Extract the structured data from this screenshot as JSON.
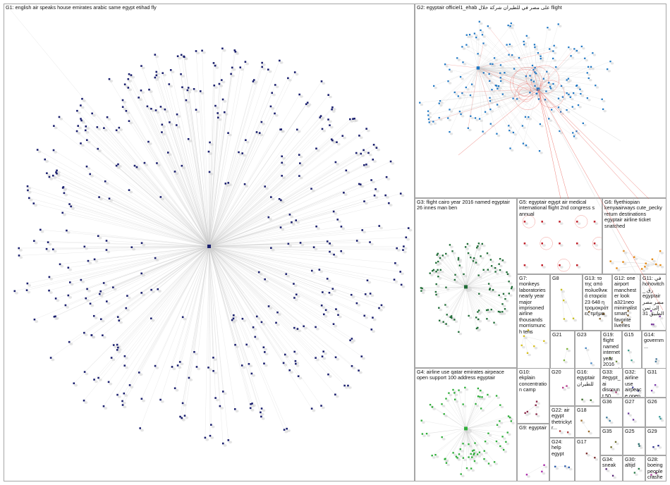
{
  "colors": {
    "border": "#a6a6a6",
    "edge": "#c9c9c9",
    "edge_red": "#e5453c",
    "shadow": "#d0d0d0"
  },
  "groups": [
    {
      "id": "G1",
      "label": "G1: english air speaks house emirates arabic same egypt etihad fly",
      "color": "#1a1f6e",
      "nodes": 420,
      "layout": "radial"
    },
    {
      "id": "G2",
      "label": "G2: egyptair officiel1_ehab على مصر في للطيران شركة خلال flight",
      "color": "#1f77c4",
      "nodes": 170,
      "layout": "cluster2"
    },
    {
      "id": "G3",
      "label": "G3: flight cairo year 2016 named egyptair 26 innes man ben",
      "color": "#1e6b35",
      "nodes": 95,
      "layout": "radial"
    },
    {
      "id": "G4",
      "label": "G4: airline use qatar emirates airpeace open support 100 address egyptair",
      "color": "#2fae3a",
      "nodes": 70,
      "layout": "radial"
    },
    {
      "id": "G5",
      "label": "G5: egyptair egypt air medical international flight 2nd congress s annual",
      "color": "#c0202a",
      "nodes": 14,
      "layout": "grid"
    },
    {
      "id": "G6",
      "label": "G6: flyethiopian kenyaairways cute_pecky return destinations egyptair airline ticket snatched",
      "color": "#e38a17",
      "nodes": 12,
      "layout": "scatter"
    },
    {
      "id": "G7",
      "label": "G7: monkeys laboratories nearly year major imprisoned airline thousands morrismunch tens",
      "color": "#d6bf20",
      "nodes": 6,
      "layout": "scatter"
    },
    {
      "id": "G8",
      "label": "G8",
      "color": "#c8c024",
      "nodes": 4,
      "layout": "scatter"
    },
    {
      "id": "G13",
      "label": "G13: το της από πολυεθνικά εταιρεία 23 648 η τρομοκράτες τμήμα",
      "color": "#8a6a3a",
      "nodes": 4,
      "layout": "scatter"
    },
    {
      "id": "G12",
      "label": "G12: one airport manchester look a321neo minimalist smart favorite liveries egyptair",
      "color": "#7a5c30",
      "nodes": 3,
      "layout": "scatter"
    },
    {
      "id": "G11",
      "label": "G11: في hohovitch_ رق egyptair مصر مصر إلى تمن الطبيق 31",
      "color": "#7b3e9e",
      "nodes": 4,
      "layout": "scatter"
    },
    {
      "id": "G21",
      "label": "G21",
      "color": "#7fb33a",
      "nodes": 2,
      "layout": "scatter"
    },
    {
      "id": "G23",
      "label": "G23",
      "color": "#4a87c2",
      "nodes": 2,
      "layout": "scatter"
    },
    {
      "id": "G19",
      "label": "G19: flight named internet year 2016 egyptair 26 innes man ben",
      "color": "#6a8a3a",
      "nodes": 2,
      "layout": "scatter"
    },
    {
      "id": "G15",
      "label": "G15",
      "color": "#3a9a8a",
      "nodes": 2,
      "layout": "scatter"
    },
    {
      "id": "G14",
      "label": "G14: governm...",
      "color": "#4a7a9a",
      "nodes": 2,
      "layout": "scatter"
    },
    {
      "id": "G10",
      "label": "G10: ekplain concentration camp",
      "color": "#8a2a4a",
      "nodes": 5,
      "layout": "scatter"
    },
    {
      "id": "G20",
      "label": "G20",
      "color": "#b33a8a",
      "nodes": 2,
      "layout": "scatter"
    },
    {
      "id": "G16",
      "label": "G16: egyptair للطيران",
      "color": "#3a6a2a",
      "nodes": 2,
      "layout": "scatter"
    },
    {
      "id": "G33",
      "label": "G33: #egypt_ai discount 50",
      "color": "#9a3a6a",
      "nodes": 2,
      "layout": "scatter"
    },
    {
      "id": "G32",
      "label": "G32: airline use airpeace open egyptair...",
      "color": "#4a4a9a",
      "nodes": 2,
      "layout": "scatter"
    },
    {
      "id": "G31",
      "label": "G31",
      "color": "#7a3aaa",
      "nodes": 2,
      "layout": "scatter"
    },
    {
      "id": "G36",
      "label": "G36",
      "color": "#3a7a9a",
      "nodes": 2,
      "layout": "scatter"
    },
    {
      "id": "G27",
      "label": "G27",
      "color": "#6a3a9a",
      "nodes": 2,
      "layout": "scatter"
    },
    {
      "id": "G26",
      "label": "G26",
      "color": "#3a9a9a",
      "nodes": 2,
      "layout": "scatter"
    },
    {
      "id": "G22",
      "label": "G22: air egypt thetrickytr...",
      "color": "#aa3a3a",
      "nodes": 2,
      "layout": "scatter"
    },
    {
      "id": "G18",
      "label": "G18",
      "color": "#9a6a2a",
      "nodes": 2,
      "layout": "scatter"
    },
    {
      "id": "G9",
      "label": "G9: egyptair",
      "color": "#aa2aaa",
      "nodes": 3,
      "layout": "scatter"
    },
    {
      "id": "G35",
      "label": "G35",
      "color": "#6a6a2a",
      "nodes": 2,
      "layout": "scatter"
    },
    {
      "id": "G25",
      "label": "G25",
      "color": "#2a6a6a",
      "nodes": 2,
      "layout": "scatter"
    },
    {
      "id": "G29",
      "label": "G29",
      "color": "#2a2a8a",
      "nodes": 2,
      "layout": "scatter"
    },
    {
      "id": "G24",
      "label": "G24: help egypt",
      "color": "#2a5aaa",
      "nodes": 3,
      "layout": "scatter"
    },
    {
      "id": "G17",
      "label": "G17",
      "color": "#7a2a2a",
      "nodes": 2,
      "layout": "scatter"
    },
    {
      "id": "G34",
      "label": "G34: sneak",
      "color": "#5a2a7a",
      "nodes": 2,
      "layout": "scatter"
    },
    {
      "id": "G30",
      "label": "G30: altijd",
      "color": "#2a7a4a",
      "nodes": 2,
      "layout": "scatter"
    },
    {
      "id": "G28",
      "label": "G28: boeing people crashes egyptair...",
      "color": "#aa3a9a",
      "nodes": 2,
      "layout": "scatter"
    }
  ]
}
